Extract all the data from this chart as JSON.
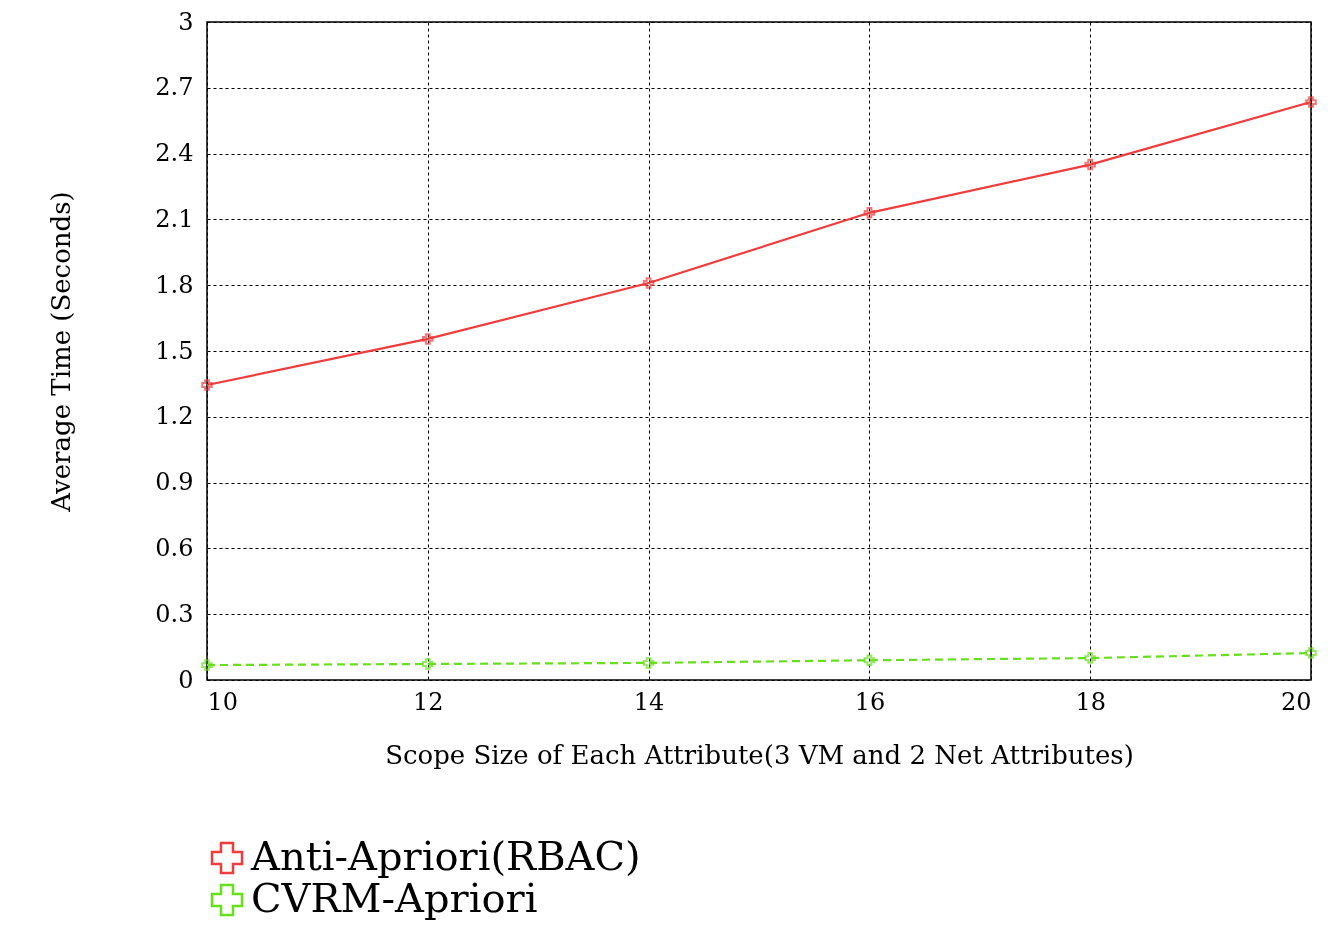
{
  "chart_data": {
    "type": "line",
    "xlabel": "Scope Size of Each Attribute(3 VM and 2 Net Attributes)",
    "ylabel": "Average Time (Seconds)",
    "x": [
      10,
      12,
      14,
      16,
      18,
      20
    ],
    "series": [
      {
        "name": "Anti-Apriori(RBAC)",
        "color": "#f03c3c",
        "values": [
          1.345,
          1.555,
          1.81,
          2.13,
          2.35,
          2.635
        ],
        "marker": "cross",
        "line_style": "solid"
      },
      {
        "name": "CVRM-Apriori",
        "color": "#66e01a",
        "values": [
          0.068,
          0.073,
          0.078,
          0.09,
          0.1,
          0.123
        ],
        "marker": "cross",
        "line_style": "dashed"
      }
    ],
    "xlim": [
      10,
      20
    ],
    "xticks": [
      10,
      12,
      14,
      16,
      18,
      20
    ],
    "ylim": [
      0,
      3
    ],
    "yticks": [
      0,
      0.3,
      0.6,
      0.9,
      1.2,
      1.5,
      1.8,
      2.1,
      2.4,
      2.7,
      3
    ],
    "grid": true,
    "legend": "bottom"
  }
}
